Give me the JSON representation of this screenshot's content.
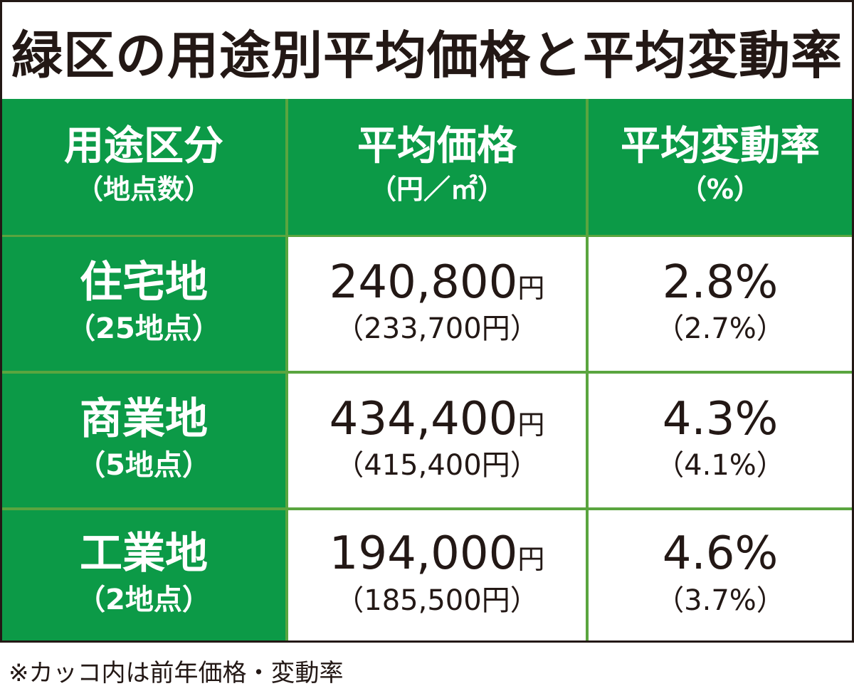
{
  "title": "緑区の用途別平均価格と平均変動率",
  "header": {
    "col1": {
      "main": "用途区分",
      "sub": "（地点数）"
    },
    "col2": {
      "main": "平均価格",
      "sub": "（円／㎡）"
    },
    "col3": {
      "main": "平均変動率",
      "sub": "（%）"
    }
  },
  "rows": [
    {
      "label": "住宅地",
      "points": "（25地点）",
      "price": "240,800",
      "price_unit": "円",
      "prev_price": "（233,700円）",
      "rate": "2.8%",
      "prev_rate": "（2.7%）"
    },
    {
      "label": "商業地",
      "points": "（5地点）",
      "price": "434,400",
      "price_unit": "円",
      "prev_price": "（415,400円）",
      "rate": "4.3%",
      "prev_rate": "（4.1%）"
    },
    {
      "label": "工業地",
      "points": "（2地点）",
      "price": "194,000",
      "price_unit": "円",
      "prev_price": "（185,500円）",
      "rate": "4.6%",
      "prev_rate": "（3.7%）"
    }
  ],
  "note": "※カッコ内は前年価格・変動率",
  "colors": {
    "header_green": "#0c9a47",
    "grid_line_green": "#5aa53f",
    "text_dark": "#231815"
  }
}
